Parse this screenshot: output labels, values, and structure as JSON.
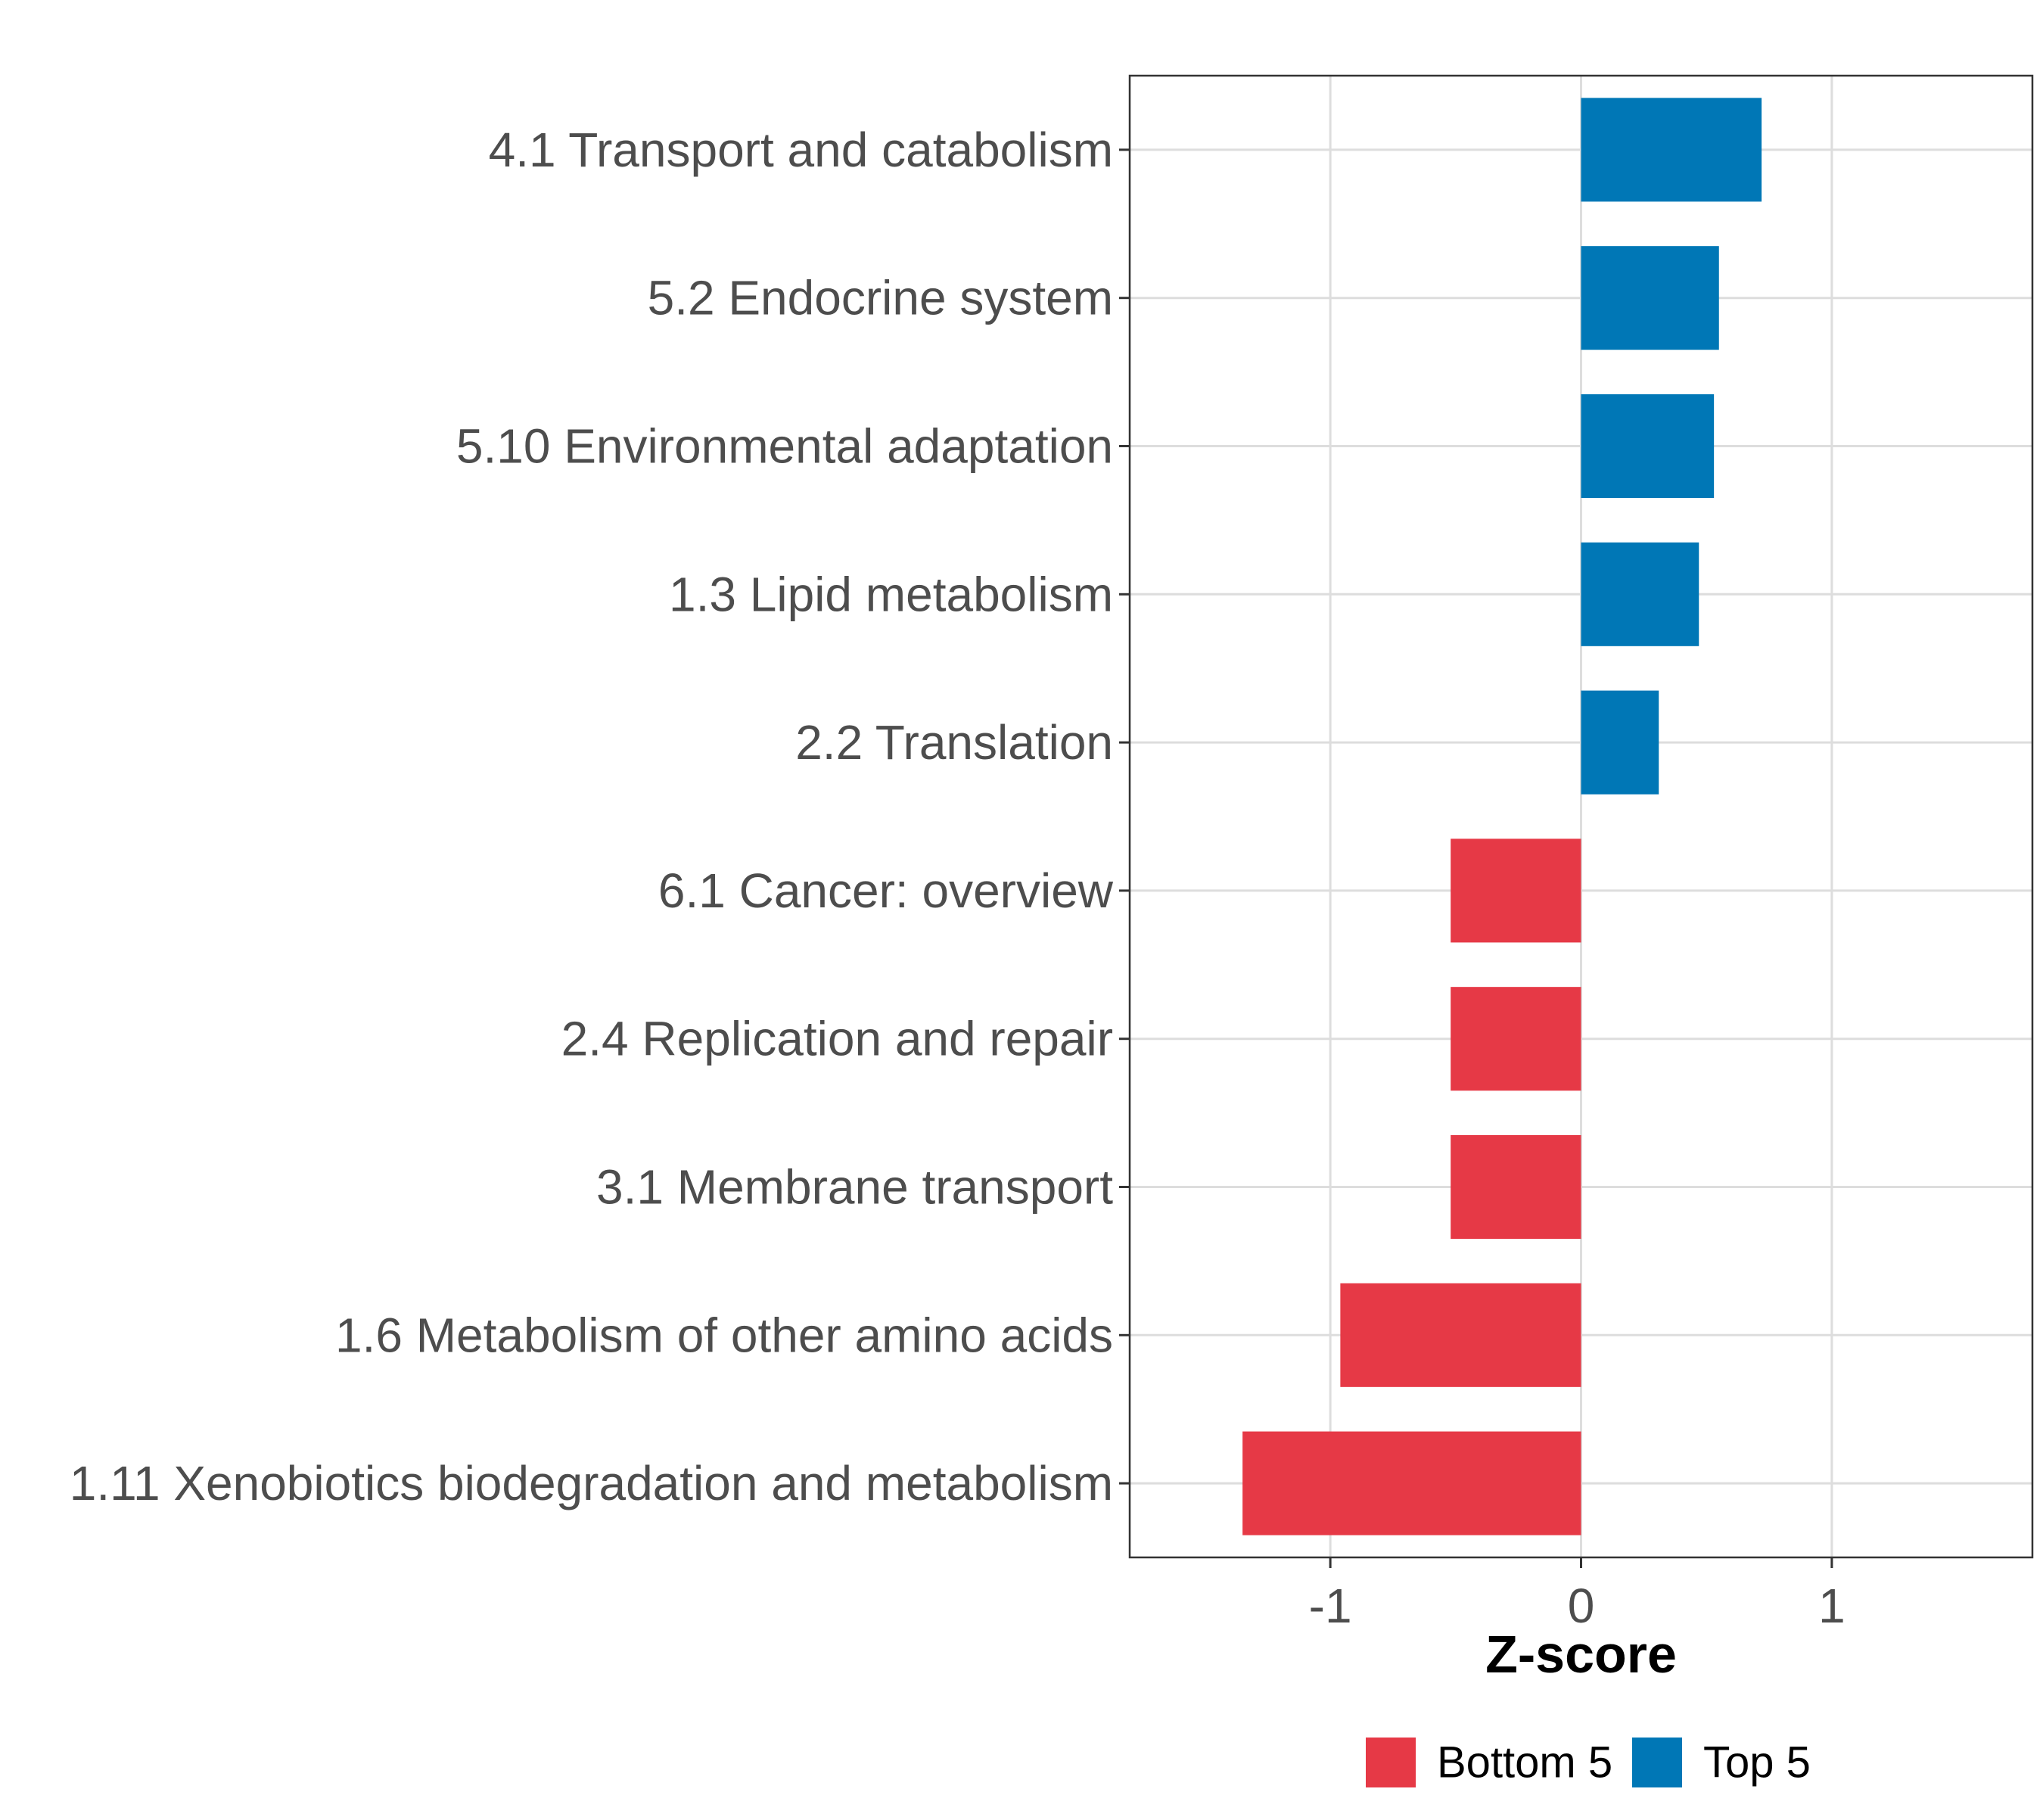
{
  "chart_data": {
    "type": "bar",
    "orientation": "horizontal",
    "title": "",
    "xlabel": "Z-score",
    "ylabel": "",
    "xlim": [
      -1.8,
      1.8
    ],
    "x_ticks": [
      -1,
      0,
      1
    ],
    "x_tick_labels": [
      "-1",
      "0",
      "1"
    ],
    "grid": true,
    "legend_position": "bottom",
    "colors": {
      "Bottom 5": "#E63946",
      "Top 5": "#0077B6"
    },
    "categories": [
      "4.1 Transport and catabolism",
      "5.2 Endocrine system",
      "5.10 Environmental adaptation",
      "1.3 Lipid metabolism",
      "2.2 Translation",
      "6.1 Cancer: overview",
      "2.4 Replication and repair",
      "3.1 Membrane transport",
      "1.6 Metabolism of other amino acids",
      "1.11 Xenobiotics biodegradation and metabolism"
    ],
    "values": [
      0.72,
      0.55,
      0.53,
      0.47,
      0.31,
      -0.52,
      -0.52,
      -0.52,
      -0.96,
      -1.35
    ],
    "groups": [
      "Top 5",
      "Top 5",
      "Top 5",
      "Top 5",
      "Top 5",
      "Bottom 5",
      "Bottom 5",
      "Bottom 5",
      "Bottom 5",
      "Bottom 5"
    ],
    "legend": [
      "Bottom 5",
      "Top 5"
    ]
  }
}
